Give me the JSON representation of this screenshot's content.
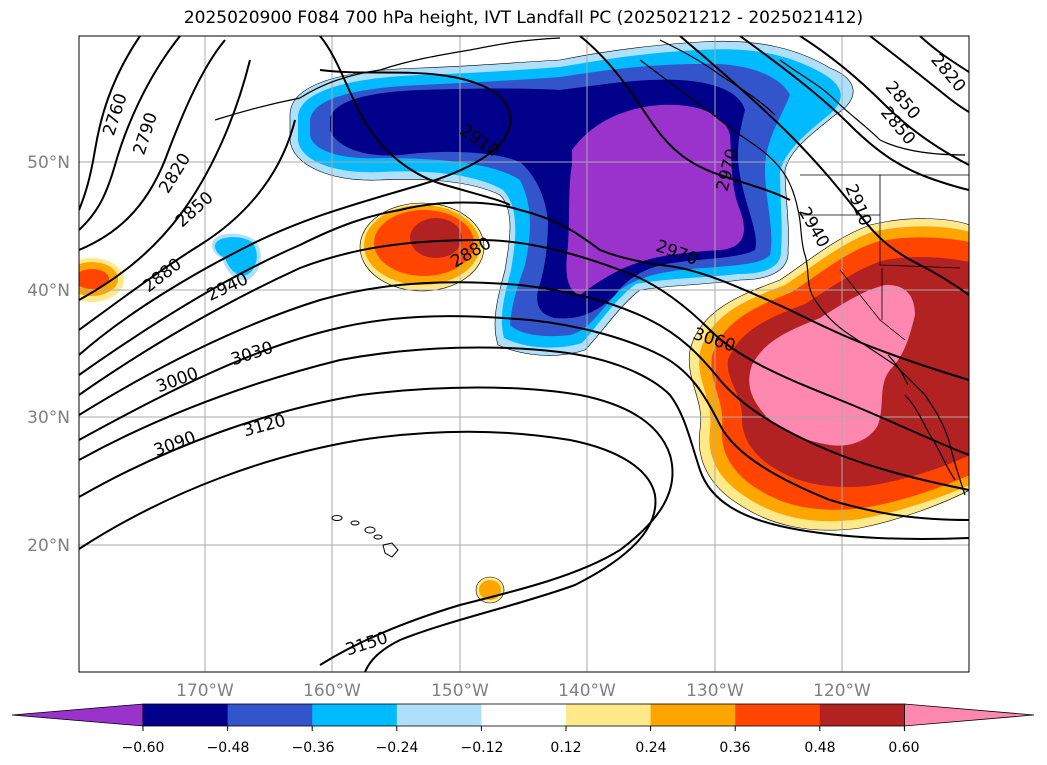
{
  "title": "2025020900 F084 700 hPa height, IVT Landfall PC (2025021212 - 2025021412)",
  "map": {
    "lat_ticks": [
      "50°N",
      "40°N",
      "30°N",
      "20°N"
    ],
    "lon_ticks": [
      "170°W",
      "160°W",
      "150°W",
      "140°W",
      "130°W",
      "120°W"
    ],
    "gridlines": true,
    "label_color": "#808080"
  },
  "contours": {
    "labels": [
      "2760",
      "2790",
      "2820",
      "2850",
      "2880",
      "2910",
      "2940",
      "2970",
      "3000",
      "3030",
      "3060",
      "3090",
      "3120",
      "3150"
    ]
  },
  "colorbar": {
    "tick_labels": [
      "−0.60",
      "−0.48",
      "−0.36",
      "−0.24",
      "−0.12",
      "0.12",
      "0.24",
      "0.36",
      "0.48",
      "0.60"
    ],
    "colors": [
      "#9933cc",
      "#00008b",
      "#3355cc",
      "#00bbff",
      "#aee0fb",
      "#ffffff",
      "#ffe98a",
      "#ffa500",
      "#ff4500",
      "#b22222",
      "#ff88b0"
    ],
    "extend": "both"
  }
}
